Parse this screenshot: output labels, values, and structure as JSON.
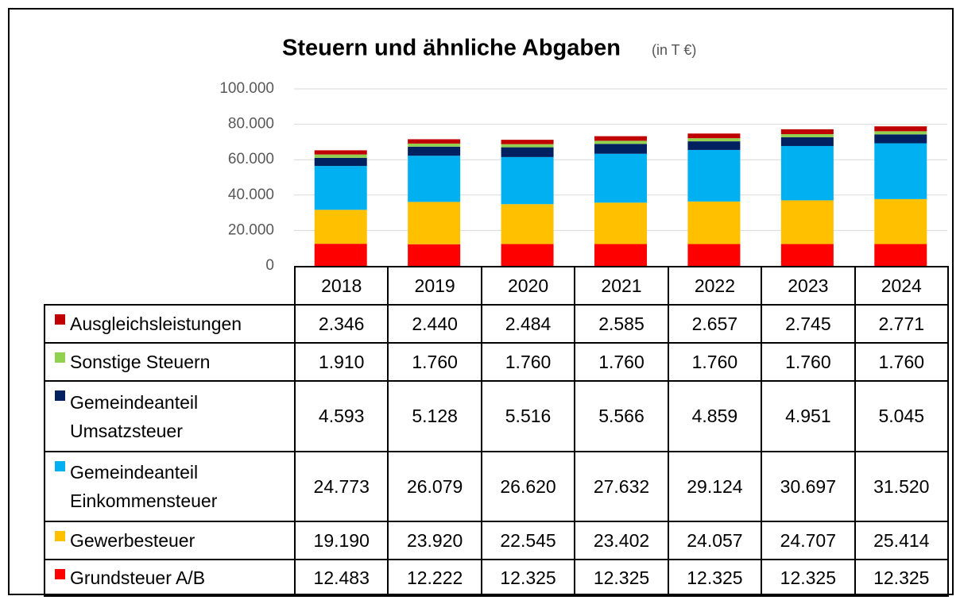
{
  "chart_data": {
    "type": "bar",
    "stacked": true,
    "title": "Steuern und ähnliche Abgaben",
    "subtitle": "(in T €)",
    "categories": [
      "2018",
      "2019",
      "2020",
      "2021",
      "2022",
      "2023",
      "2024"
    ],
    "series": [
      {
        "name": "Ausgleichsleistungen",
        "color": "#c00000",
        "values": [
          2346,
          2440,
          2484,
          2585,
          2657,
          2745,
          2771
        ],
        "value_labels": [
          "2.346",
          "2.440",
          "2.484",
          "2.585",
          "2.657",
          "2.745",
          "2.771"
        ]
      },
      {
        "name": "Sonstige Steuern",
        "color": "#92d050",
        "values": [
          1910,
          1760,
          1760,
          1760,
          1760,
          1760,
          1760
        ],
        "value_labels": [
          "1.910",
          "1.760",
          "1.760",
          "1.760",
          "1.760",
          "1.760",
          "1.760"
        ]
      },
      {
        "name": "Gemeindeanteil Umsatzsteuer",
        "color": "#002060",
        "values": [
          4593,
          5128,
          5516,
          5566,
          4859,
          4951,
          5045
        ],
        "value_labels": [
          "4.593",
          "5.128",
          "5.516",
          "5.566",
          "4.859",
          "4.951",
          "5.045"
        ]
      },
      {
        "name": "Gemeindeanteil Einkommensteuer",
        "color": "#00b0f0",
        "values": [
          24773,
          26079,
          26620,
          27632,
          29124,
          30697,
          31520
        ],
        "value_labels": [
          "24.773",
          "26.079",
          "26.620",
          "27.632",
          "29.124",
          "30.697",
          "31.520"
        ]
      },
      {
        "name": "Gewerbesteuer",
        "color": "#ffc000",
        "values": [
          19190,
          23920,
          22545,
          23402,
          24057,
          24707,
          25414
        ],
        "value_labels": [
          "19.190",
          "23.920",
          "22.545",
          "23.402",
          "24.057",
          "24.707",
          "25.414"
        ]
      },
      {
        "name": "Grundsteuer A/B",
        "color": "#ff0000",
        "values": [
          12483,
          12222,
          12325,
          12325,
          12325,
          12325,
          12325
        ],
        "value_labels": [
          "12.483",
          "12.222",
          "12.325",
          "12.325",
          "12.325",
          "12.325",
          "12.325"
        ]
      }
    ],
    "ylim": [
      0,
      100000
    ],
    "yticks": [
      0,
      {
        "value": 20000,
        "label": "20.000"
      },
      {
        "value": 40000,
        "label": "40.000"
      },
      {
        "value": 60000,
        "label": "60.000"
      },
      {
        "value": 80000,
        "label": "80.000"
      },
      {
        "value": 100000,
        "label": "100.000"
      }
    ],
    "grid": true
  }
}
